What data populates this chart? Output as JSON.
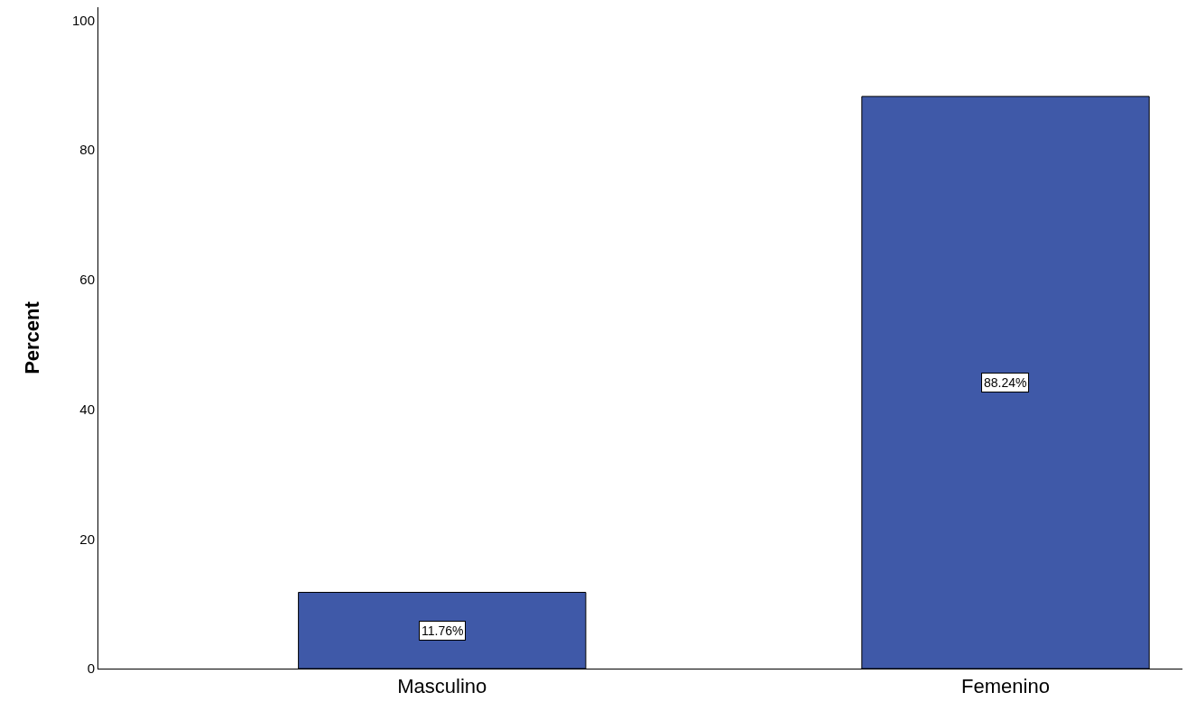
{
  "chart_data": {
    "type": "bar",
    "ylabel": "Percent",
    "categories": [
      "Masculino",
      "Femenino"
    ],
    "values": [
      11.76,
      88.24
    ],
    "value_labels": [
      "11.76%",
      "88.24%"
    ],
    "color": "#3f59a8",
    "ylim": [
      0,
      102
    ],
    "yticks": [
      0,
      20,
      40,
      60,
      80,
      100
    ],
    "grid": false,
    "legend": false
  }
}
